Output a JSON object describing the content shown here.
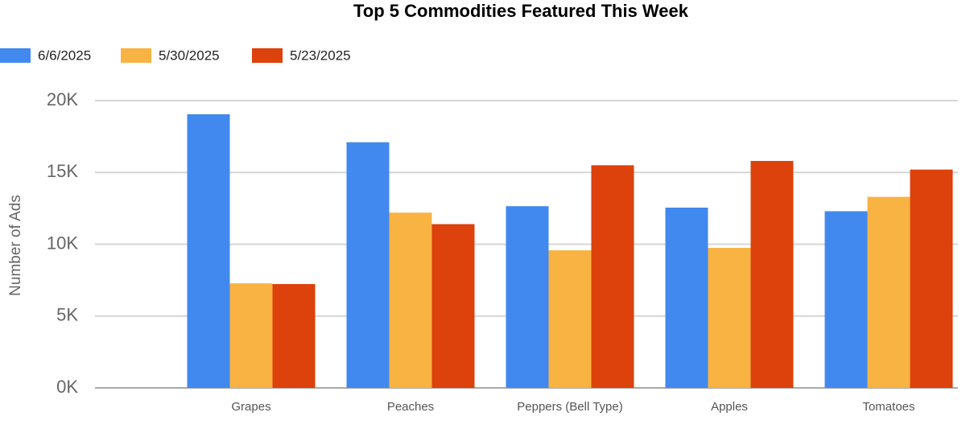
{
  "chart_data": {
    "type": "bar",
    "title": "Top 5 Commodities Featured This Week",
    "y_label": "Number of Ads",
    "categories": [
      "Grapes",
      "Peaches",
      "Peppers (Bell Type)",
      "Apples",
      "Tomatoes"
    ],
    "series": [
      {
        "name": "6/6/2025",
        "color": "#4189ee",
        "values": [
          19050,
          17100,
          12650,
          12550,
          12300
        ]
      },
      {
        "name": "5/30/2025",
        "color": "#f9b342",
        "values": [
          7280,
          12200,
          9580,
          9750,
          13300
        ]
      },
      {
        "name": "5/23/2025",
        "color": "#dd410c",
        "values": [
          7230,
          11400,
          15500,
          15800,
          15200
        ]
      }
    ],
    "ylim": [
      0,
      20000
    ],
    "yticks": [
      {
        "value": 0,
        "label": "0K"
      },
      {
        "value": 5000,
        "label": "5K"
      },
      {
        "value": 10000,
        "label": "10K"
      },
      {
        "value": 15000,
        "label": "15K"
      },
      {
        "value": 20000,
        "label": "20K"
      }
    ],
    "grid": true,
    "legend": "top-left"
  }
}
